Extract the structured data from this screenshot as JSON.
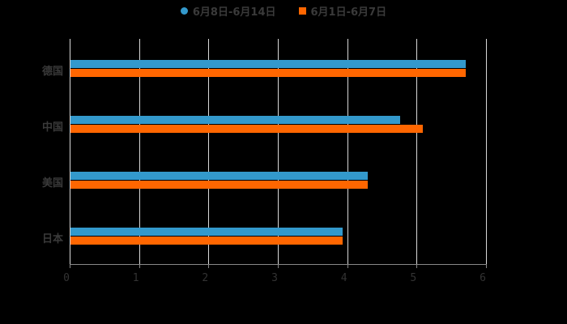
{
  "chart_data": {
    "type": "bar",
    "orientation": "horizontal",
    "title": "",
    "categories": [
      "德国",
      "中国",
      "美国",
      "日本"
    ],
    "series": [
      {
        "name": "6月8日-6月14日",
        "color": "#3399cc",
        "values": [
          5.7,
          4.75,
          4.28,
          3.92
        ]
      },
      {
        "name": "6月1日-6月7日",
        "color": "#ff6600",
        "values": [
          5.7,
          5.08,
          4.28,
          3.92
        ]
      }
    ],
    "xlabel": "",
    "ylabel": "",
    "xlim": [
      0,
      6
    ],
    "xticks": [
      "0",
      "1",
      "2",
      "3",
      "4",
      "5",
      "6"
    ],
    "grid": true,
    "legend_position": "top"
  },
  "legend": {
    "series1": "6月8日-6月14日",
    "series2": "6月1日-6月7日"
  },
  "colors": {
    "series1": "#3399cc",
    "series2": "#ff6600"
  }
}
